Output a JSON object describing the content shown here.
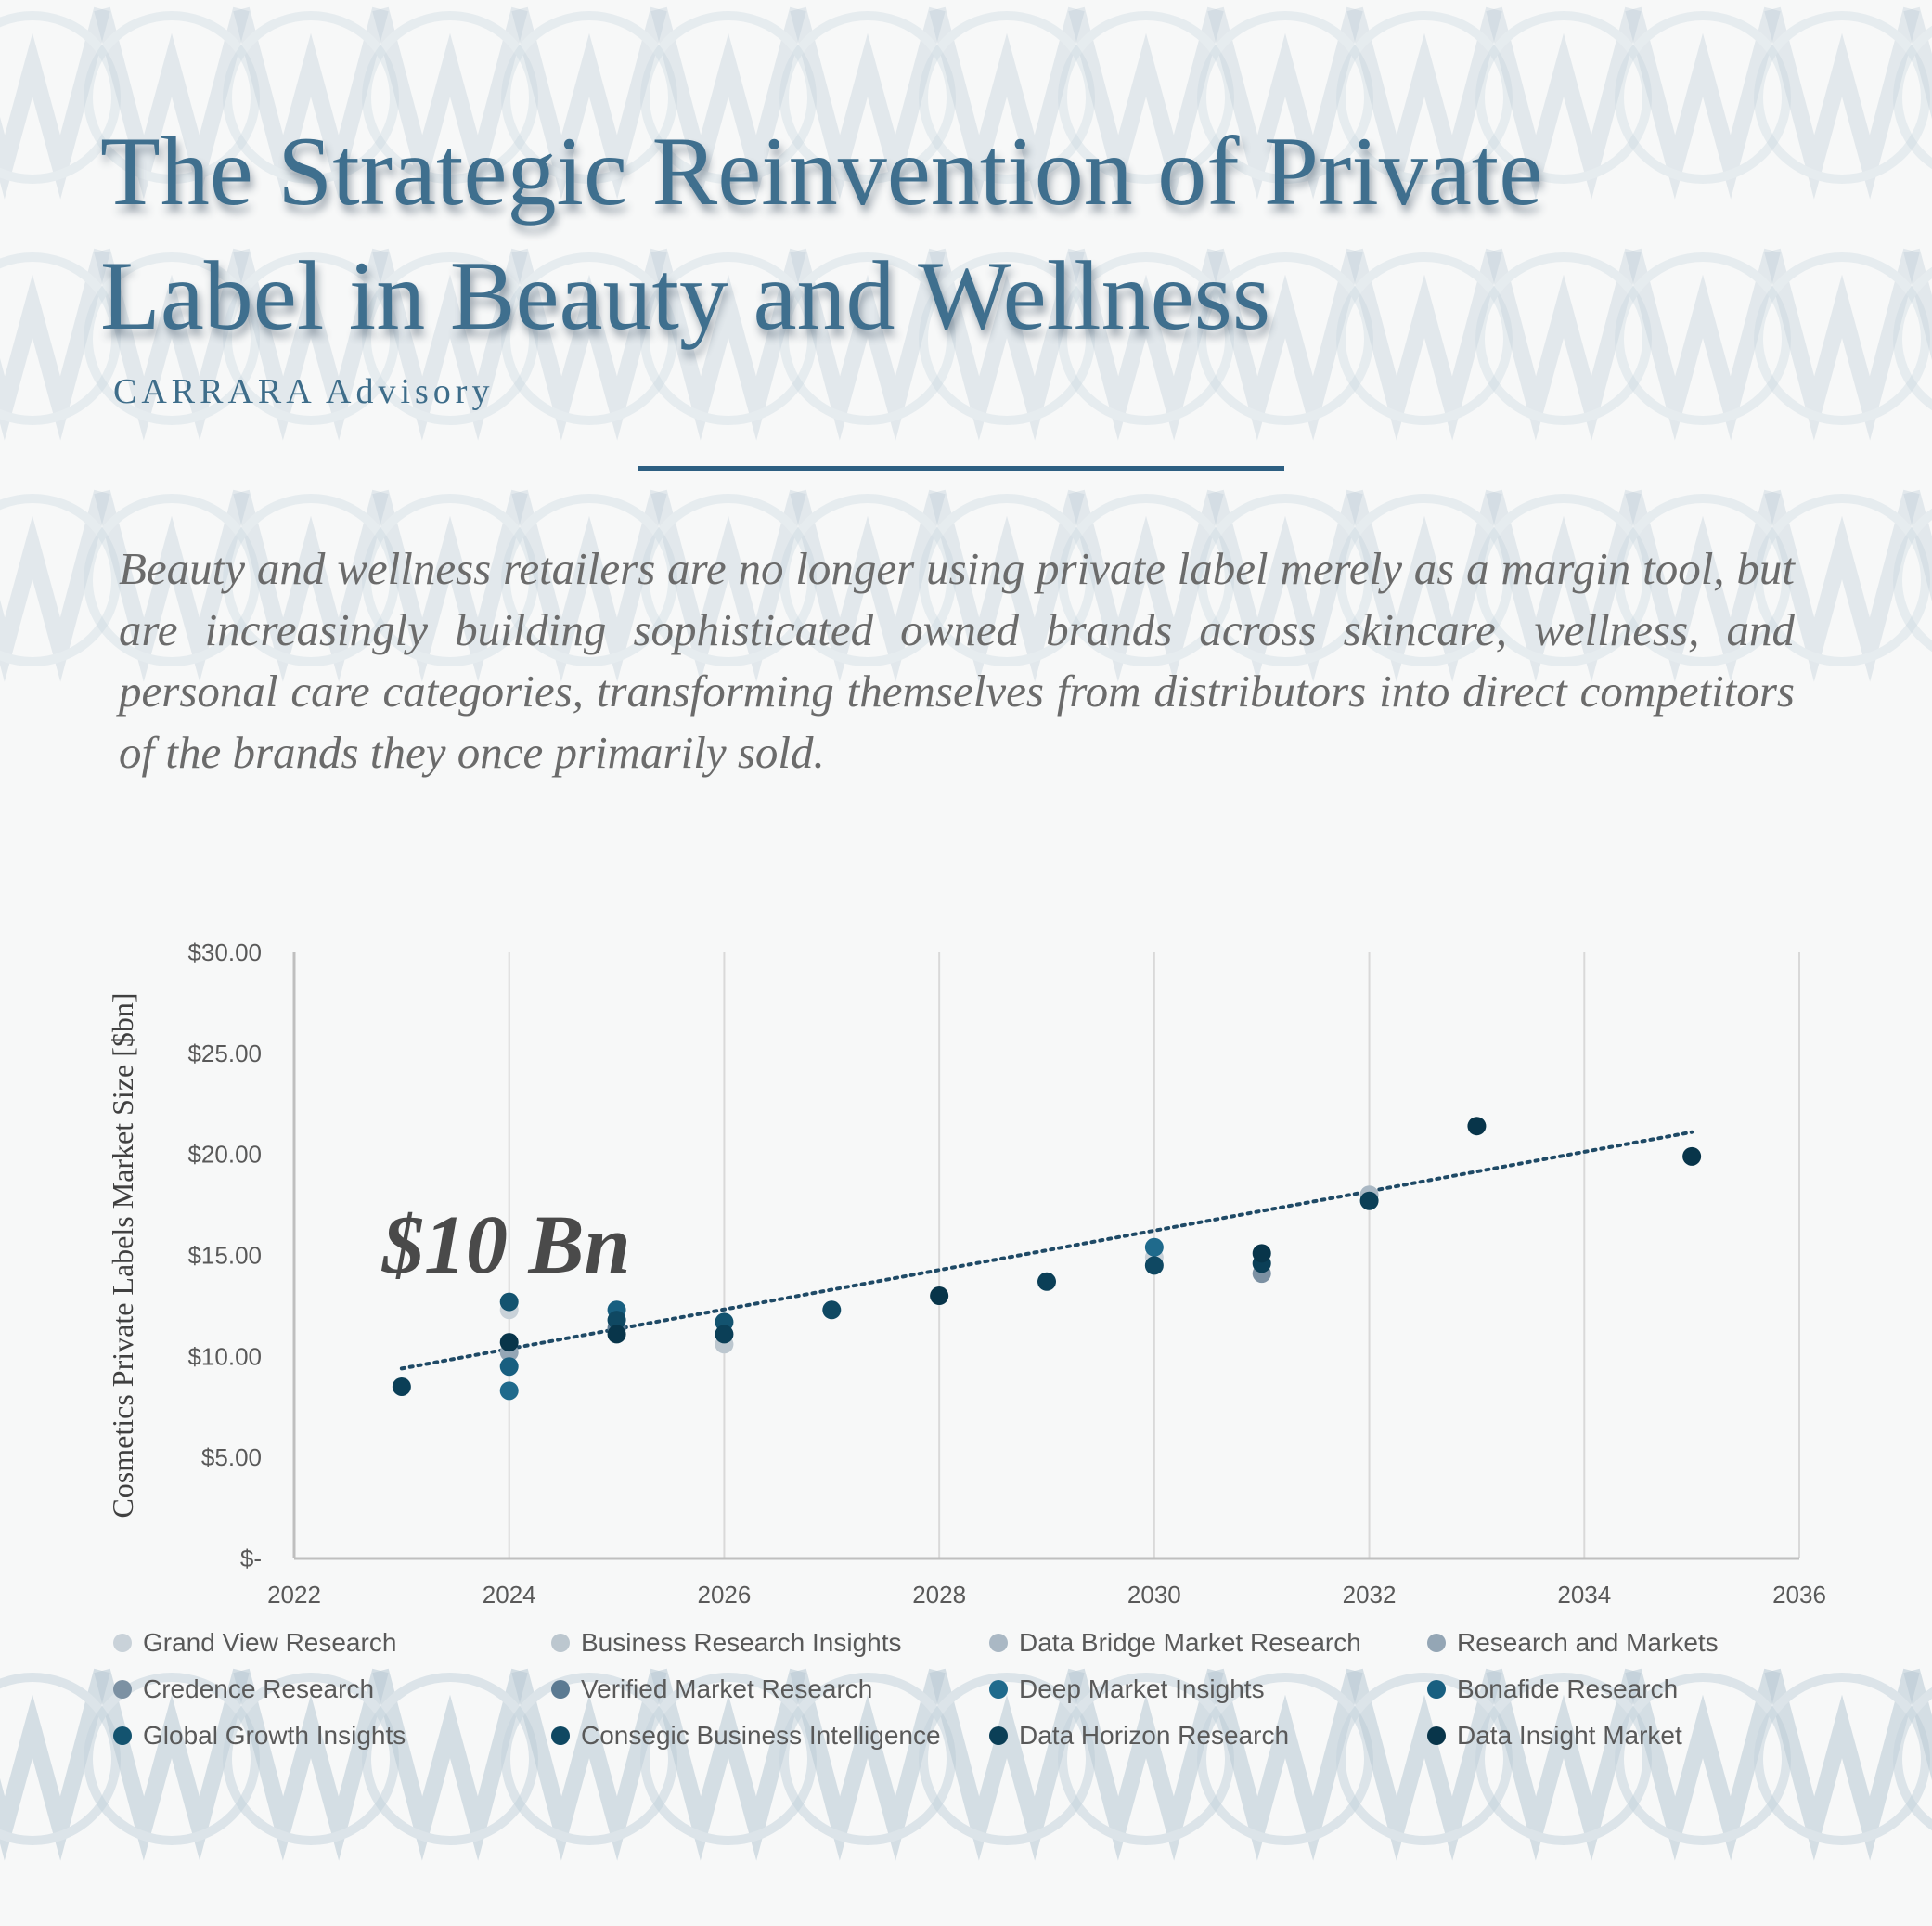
{
  "header": {
    "title": "The Strategic Reinvention of Private Label in Beauty and Wellness",
    "brand": "CARRARA  Advisory",
    "intro": "Beauty and wellness retailers are no longer using private label merely as a margin tool, but are increasingly building sophisticated owned brands across skincare, wellness, and personal care categories, transforming themselves from distributors into direct competitors of the brands they once primarily sold."
  },
  "colors": {
    "accent": "#2d5f82",
    "title": "#3f6f8e",
    "trendline": "#1f4a66"
  },
  "annotation": "$10 Bn",
  "chart_data": {
    "type": "scatter",
    "ylabel": "Cosmetics Private Labels Market Size [$bn]",
    "xlim": [
      2022,
      2036
    ],
    "ylim": [
      0,
      30
    ],
    "x_ticks": [
      "2022",
      "2024",
      "2026",
      "2028",
      "2030",
      "2032",
      "2034",
      "2036"
    ],
    "y_ticks": [
      "$-",
      "$5.00",
      "$10.00",
      "$15.00",
      "$20.00",
      "$25.00",
      "$30.00"
    ],
    "grid": "vertical",
    "legend_position": "bottom",
    "trendline": {
      "style": "dotted",
      "from": [
        2023,
        9.4
      ],
      "to": [
        2035,
        21.1
      ]
    },
    "series": [
      {
        "name": "Grand View Research",
        "color": "#c9d2d9",
        "points": [
          [
            2024,
            12.3
          ],
          [
            2030,
            14.9
          ]
        ]
      },
      {
        "name": "Business Research Insights",
        "color": "#bcc7cf",
        "points": [
          [
            2026,
            10.6
          ]
        ]
      },
      {
        "name": "Data Bridge Market Research",
        "color": "#aab8c4",
        "points": [
          [
            2032,
            18.0
          ]
        ]
      },
      {
        "name": "Research and Markets",
        "color": "#94a6b5",
        "points": [
          [
            2024,
            10.2
          ]
        ]
      },
      {
        "name": "Credence Research",
        "color": "#7c91a3",
        "points": [
          [
            2031,
            14.1
          ]
        ]
      },
      {
        "name": "Verified Market Research",
        "color": "#5b7a92",
        "points": [
          [
            2025,
            11.4
          ]
        ]
      },
      {
        "name": "Deep Market Insights",
        "color": "#1f6a8c",
        "points": [
          [
            2024,
            8.3
          ],
          [
            2030,
            15.4
          ]
        ]
      },
      {
        "name": "Bonafide Research",
        "color": "#185f80",
        "points": [
          [
            2024,
            9.5
          ],
          [
            2025,
            12.3
          ]
        ]
      },
      {
        "name": "Global Growth Insights",
        "color": "#13536f",
        "points": [
          [
            2024,
            12.7
          ],
          [
            2026,
            11.7
          ]
        ]
      },
      {
        "name": "Consegic Business Intelligence",
        "color": "#0f4862",
        "points": [
          [
            2025,
            11.8
          ],
          [
            2027,
            12.3
          ],
          [
            2030,
            14.5
          ]
        ]
      },
      {
        "name": "Data Horizon Research",
        "color": "#0b3f57",
        "points": [
          [
            2023,
            8.5
          ],
          [
            2026,
            11.1
          ],
          [
            2029,
            13.7
          ],
          [
            2031,
            14.6
          ],
          [
            2032,
            17.7
          ]
        ]
      },
      {
        "name": "Data Insight Market",
        "color": "#08354a",
        "points": [
          [
            2024,
            10.7
          ],
          [
            2025,
            11.1
          ],
          [
            2028,
            13.0
          ],
          [
            2031,
            15.1
          ],
          [
            2033,
            21.4
          ],
          [
            2035,
            19.9
          ]
        ]
      }
    ]
  }
}
